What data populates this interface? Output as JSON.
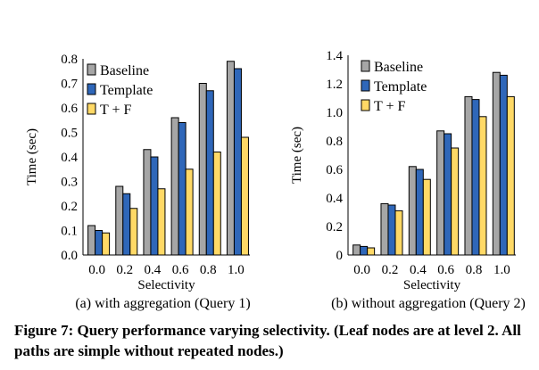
{
  "chart_data": [
    {
      "type": "bar",
      "subcaption": "(a) with aggregation (Query 1)",
      "xlabel": "Selectivity",
      "ylabel": "Time (sec)",
      "ylim": [
        0,
        0.8
      ],
      "yticks": [
        "0.0",
        "0.1",
        "0.2",
        "0.3",
        "0.4",
        "0.5",
        "0.6",
        "0.7",
        "0.8"
      ],
      "categories": [
        "0.0",
        "0.2",
        "0.4",
        "0.6",
        "0.8",
        "1.0"
      ],
      "legend_position": "top-left",
      "series": [
        {
          "name": "Baseline",
          "color": "#a6a6a6",
          "values": [
            0.12,
            0.28,
            0.43,
            0.56,
            0.7,
            0.79
          ]
        },
        {
          "name": "Template",
          "color": "#2f67b9",
          "values": [
            0.1,
            0.25,
            0.4,
            0.54,
            0.67,
            0.76
          ]
        },
        {
          "name": "T + F",
          "color": "#ffd966",
          "values": [
            0.09,
            0.19,
            0.27,
            0.35,
            0.42,
            0.48
          ]
        }
      ]
    },
    {
      "type": "bar",
      "subcaption": "(b) without aggregation (Query 2)",
      "xlabel": "Selectivity",
      "ylabel": "Time (sec)",
      "ylim": [
        0,
        1.4
      ],
      "yticks": [
        "0",
        "0.2",
        "0.4",
        "0.6",
        "0.8",
        "1.0",
        "1.2",
        "1.4"
      ],
      "categories": [
        "0.0",
        "0.2",
        "0.4",
        "0.6",
        "0.8",
        "1.0"
      ],
      "legend_position": "top-left",
      "series": [
        {
          "name": "Baseline",
          "color": "#a6a6a6",
          "values": [
            0.07,
            0.36,
            0.62,
            0.87,
            1.11,
            1.28
          ]
        },
        {
          "name": "Template",
          "color": "#2f67b9",
          "values": [
            0.06,
            0.35,
            0.6,
            0.85,
            1.09,
            1.26
          ]
        },
        {
          "name": "T + F",
          "color": "#ffd966",
          "values": [
            0.05,
            0.31,
            0.53,
            0.75,
            0.97,
            1.11
          ]
        }
      ]
    }
  ],
  "caption": "Figure 7: Query performance varying selectivity. (Leaf nodes are at level 2. All paths are simple without repeated nodes.)"
}
